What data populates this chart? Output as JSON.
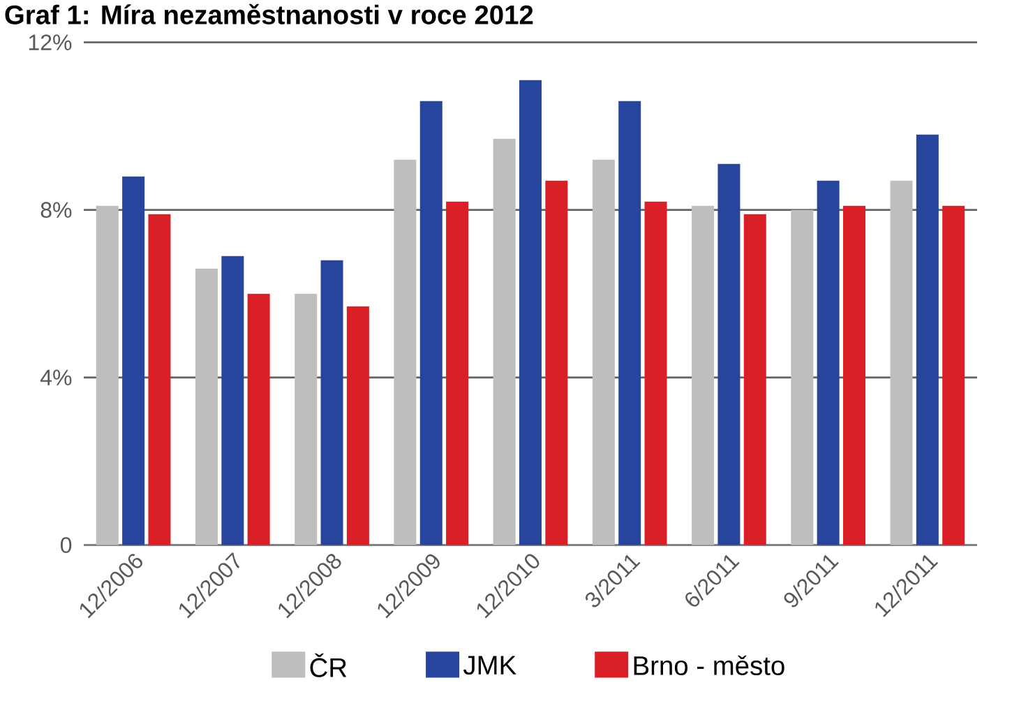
{
  "chart_data": {
    "type": "bar",
    "title": "Graf 1: Míra nezaměstnanosti v roce 2012",
    "categories": [
      "12/2006",
      "12/2007",
      "12/2008",
      "12/2009",
      "12/2010",
      "3/2011",
      "6/2011",
      "9/2011",
      "12/2011"
    ],
    "series": [
      {
        "name": "ČR",
        "color": "#bebebe",
        "values": [
          8.1,
          6.6,
          6.0,
          9.2,
          9.7,
          9.2,
          8.1,
          8.0,
          8.7
        ]
      },
      {
        "name": "JMK",
        "color": "#28459e",
        "values": [
          8.8,
          6.9,
          6.8,
          10.6,
          11.1,
          10.6,
          9.1,
          8.7,
          9.8
        ]
      },
      {
        "name": "Brno - město",
        "color": "#da1f26",
        "values": [
          7.9,
          6.0,
          5.7,
          8.2,
          8.7,
          8.2,
          7.9,
          8.1,
          8.1
        ]
      }
    ],
    "ylim": [
      0,
      12
    ],
    "yticks": [
      0,
      {
        "value": 4,
        "label": "4%"
      },
      {
        "value": 8,
        "label": "8%"
      },
      {
        "value": 12,
        "label": "12%"
      }
    ],
    "grid": "y",
    "legend": "bottom"
  }
}
